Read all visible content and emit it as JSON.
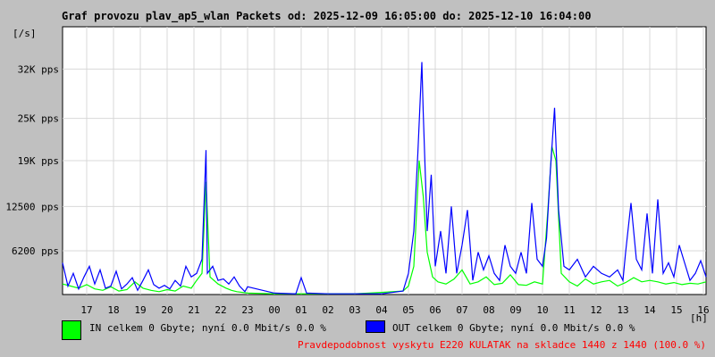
{
  "title": "Graf provozu plav_ap5_wlan Packets od: 2025-12-09 16:05:00 do: 2025-12-10 16:04:00",
  "legend": {
    "in": {
      "label": "IN celkem 0 Gbyte; nyní   0.0 Mbit/s 0.0 %",
      "color": "#00ff00"
    },
    "out": {
      "label": "OUT celkem 0 Gbyte; nyní   0.0 Mbit/s 0.0 %",
      "color": "#0000ff"
    }
  },
  "probability_note": "Pravdepodobnost vyskytu E220 KULATAK na skladce 1440 z 1440 (100.0 %)",
  "chart_data": {
    "type": "line",
    "title": "Graf provozu plav_ap5_wlan Packets od: 2025-12-09 16:05:00 do: 2025-12-10 16:04:00",
    "ylabel": "[/s]",
    "xlabel": "[h]",
    "ylim": [
      0,
      38000
    ],
    "xlim": [
      16.1,
      40.1
    ],
    "grid": true,
    "y_ticks": [
      {
        "value": 6200,
        "label": "6200 pps"
      },
      {
        "value": 12500,
        "label": "12500 pps"
      },
      {
        "value": 19000,
        "label": "19K pps"
      },
      {
        "value": 25000,
        "label": "25K pps"
      },
      {
        "value": 32000,
        "label": "32K pps"
      }
    ],
    "x_ticks": [
      {
        "value": 17,
        "label": "17"
      },
      {
        "value": 18,
        "label": "18"
      },
      {
        "value": 19,
        "label": "19"
      },
      {
        "value": 20,
        "label": "20"
      },
      {
        "value": 21,
        "label": "21"
      },
      {
        "value": 22,
        "label": "22"
      },
      {
        "value": 23,
        "label": "23"
      },
      {
        "value": 24,
        "label": "00"
      },
      {
        "value": 25,
        "label": "01"
      },
      {
        "value": 26,
        "label": "02"
      },
      {
        "value": 27,
        "label": "03"
      },
      {
        "value": 28,
        "label": "04"
      },
      {
        "value": 29,
        "label": "05"
      },
      {
        "value": 30,
        "label": "06"
      },
      {
        "value": 31,
        "label": "07"
      },
      {
        "value": 32,
        "label": "08"
      },
      {
        "value": 33,
        "label": "09"
      },
      {
        "value": 34,
        "label": "10"
      },
      {
        "value": 35,
        "label": "11"
      },
      {
        "value": 36,
        "label": "12"
      },
      {
        "value": 37,
        "label": "13"
      },
      {
        "value": 38,
        "label": "14"
      },
      {
        "value": 39,
        "label": "15"
      },
      {
        "value": 40,
        "label": "16"
      }
    ],
    "series": [
      {
        "name": "IN",
        "color": "#00ff00",
        "x": [
          16.1,
          16.4,
          16.7,
          17.0,
          17.3,
          17.6,
          17.9,
          18.2,
          18.5,
          18.8,
          19.1,
          19.4,
          19.7,
          20.0,
          20.3,
          20.6,
          20.9,
          21.1,
          21.3,
          21.45,
          21.6,
          21.9,
          22.2,
          22.4,
          22.6,
          23.0,
          24.0,
          25.0,
          26.0,
          27.0,
          28.0,
          28.8,
          29.0,
          29.2,
          29.4,
          29.55,
          29.7,
          29.9,
          30.1,
          30.4,
          30.7,
          31.0,
          31.3,
          31.6,
          31.9,
          32.2,
          32.5,
          32.8,
          33.1,
          33.4,
          33.7,
          34.0,
          34.2,
          34.35,
          34.5,
          34.7,
          35.0,
          35.3,
          35.6,
          35.9,
          36.2,
          36.5,
          36.8,
          37.1,
          37.4,
          37.7,
          38.0,
          38.3,
          38.6,
          38.9,
          39.2,
          39.5,
          39.8,
          40.1
        ],
        "values": [
          1500,
          1200,
          900,
          1400,
          800,
          600,
          1100,
          500,
          700,
          1800,
          900,
          600,
          400,
          700,
          500,
          1200,
          900,
          2000,
          3000,
          16000,
          2500,
          1500,
          900,
          600,
          400,
          200,
          100,
          100,
          100,
          100,
          300,
          500,
          1200,
          4000,
          19000,
          14000,
          6000,
          2500,
          1800,
          1500,
          2200,
          3500,
          1500,
          1800,
          2500,
          1400,
          1600,
          2800,
          1400,
          1300,
          1800,
          1500,
          12000,
          21000,
          19000,
          3000,
          1800,
          1200,
          2200,
          1500,
          1800,
          2000,
          1200,
          1700,
          2400,
          1800,
          2000,
          1800,
          1500,
          1700,
          1400,
          1600,
          1500,
          1800
        ]
      },
      {
        "name": "OUT",
        "color": "#0000ff",
        "x": [
          16.1,
          16.3,
          16.5,
          16.7,
          16.9,
          17.1,
          17.3,
          17.5,
          17.7,
          17.9,
          18.1,
          18.3,
          18.5,
          18.7,
          18.9,
          19.1,
          19.3,
          19.5,
          19.7,
          19.9,
          20.1,
          20.3,
          20.5,
          20.7,
          20.9,
          21.1,
          21.3,
          21.45,
          21.5,
          21.7,
          21.9,
          22.1,
          22.3,
          22.5,
          22.7,
          22.9,
          23.0,
          24.0,
          24.8,
          25.0,
          25.2,
          26.0,
          27.0,
          28.0,
          28.8,
          29.0,
          29.2,
          29.35,
          29.5,
          29.55,
          29.7,
          29.85,
          30.0,
          30.2,
          30.4,
          30.6,
          30.8,
          31.0,
          31.2,
          31.4,
          31.6,
          31.8,
          32.0,
          32.2,
          32.4,
          32.6,
          32.8,
          33.0,
          33.2,
          33.4,
          33.6,
          33.8,
          34.0,
          34.15,
          34.3,
          34.45,
          34.6,
          34.8,
          35.0,
          35.3,
          35.6,
          35.9,
          36.2,
          36.5,
          36.8,
          37.0,
          37.1,
          37.3,
          37.5,
          37.7,
          37.9,
          38.1,
          38.3,
          38.5,
          38.7,
          38.9,
          39.1,
          39.3,
          39.5,
          39.7,
          39.9,
          40.1
        ],
        "values": [
          4500,
          1200,
          3000,
          800,
          2500,
          4000,
          1500,
          3500,
          900,
          1200,
          3300,
          800,
          1500,
          2400,
          600,
          2000,
          3500,
          1400,
          900,
          1300,
          800,
          2000,
          1200,
          4000,
          2500,
          3000,
          5000,
          20500,
          3000,
          4000,
          2000,
          2200,
          1500,
          2500,
          1200,
          400,
          1100,
          200,
          100,
          2400,
          200,
          100,
          100,
          100,
          500,
          3000,
          9000,
          20000,
          33000,
          26000,
          9000,
          17000,
          4000,
          9000,
          3000,
          12500,
          3000,
          7000,
          12000,
          2000,
          6000,
          3500,
          5500,
          3000,
          2000,
          7000,
          4000,
          3000,
          6000,
          3000,
          13000,
          5000,
          4000,
          8000,
          18000,
          26500,
          12000,
          4000,
          3500,
          5000,
          2500,
          4000,
          3000,
          2500,
          3500,
          2000,
          6000,
          13000,
          5000,
          3500,
          11500,
          3000,
          13500,
          3000,
          4500,
          2500,
          7000,
          4500,
          2000,
          3000,
          4800,
          2500
        ]
      }
    ]
  }
}
